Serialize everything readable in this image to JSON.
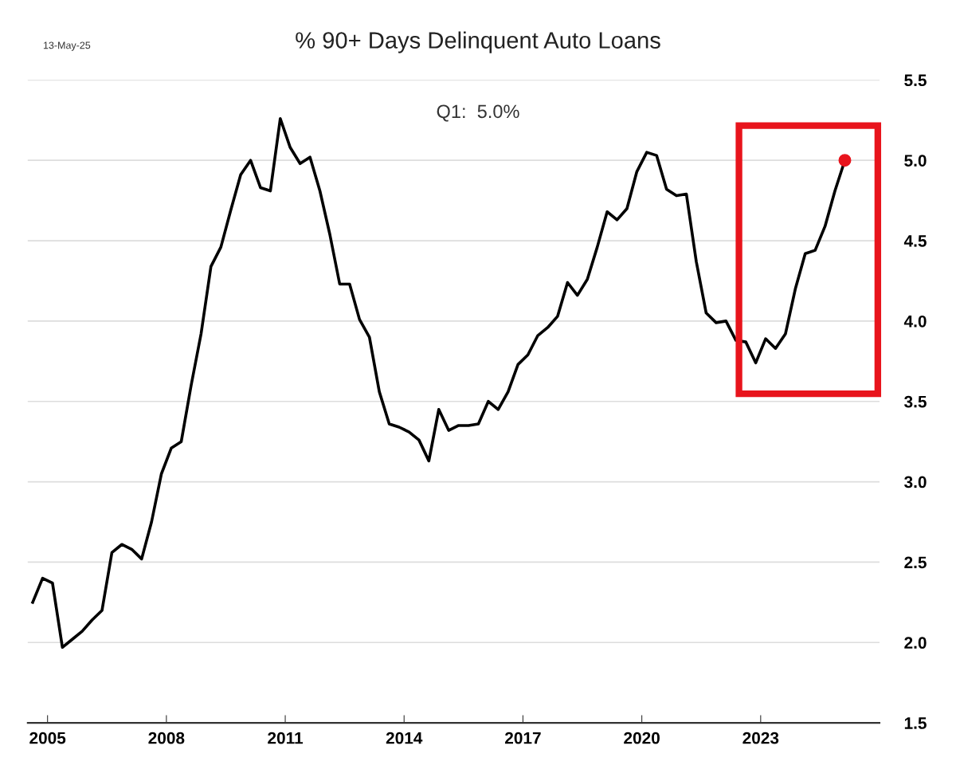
{
  "chart_data": {
    "type": "line",
    "title": "% 90+ Days Delinquent Auto Loans",
    "annotations": [
      "13-May-25",
      "Q1:  5.0%"
    ],
    "x": [
      2004.625,
      2004.875,
      2005.125,
      2005.375,
      2005.625,
      2005.875,
      2006.125,
      2006.375,
      2006.625,
      2006.875,
      2007.125,
      2007.375,
      2007.625,
      2007.875,
      2008.125,
      2008.375,
      2008.625,
      2008.875,
      2009.125,
      2009.375,
      2009.625,
      2009.875,
      2010.125,
      2010.375,
      2010.625,
      2010.875,
      2011.125,
      2011.375,
      2011.625,
      2011.875,
      2012.125,
      2012.375,
      2012.625,
      2012.875,
      2013.125,
      2013.375,
      2013.625,
      2013.875,
      2014.125,
      2014.375,
      2014.625,
      2014.875,
      2015.125,
      2015.375,
      2015.625,
      2015.875,
      2016.125,
      2016.375,
      2016.625,
      2016.875,
      2017.125,
      2017.375,
      2017.625,
      2017.875,
      2018.125,
      2018.375,
      2018.625,
      2018.875,
      2019.125,
      2019.375,
      2019.625,
      2019.875,
      2020.125,
      2020.375,
      2020.625,
      2020.875,
      2021.125,
      2021.375,
      2021.625,
      2021.875,
      2022.125,
      2022.375,
      2022.625,
      2022.875,
      2023.125,
      2023.375,
      2023.625,
      2023.875,
      2024.125,
      2024.375,
      2024.625,
      2024.875,
      2025.125
    ],
    "series": [
      {
        "color": "#000000",
        "marker": "none",
        "values": [
          2.25,
          2.4,
          2.37,
          1.97,
          2.02,
          2.07,
          2.14,
          2.2,
          2.56,
          2.61,
          2.58,
          2.52,
          2.75,
          3.05,
          3.21,
          3.25,
          3.6,
          3.92,
          4.34,
          4.46,
          4.69,
          4.91,
          5.0,
          4.83,
          4.81,
          5.26,
          5.08,
          4.98,
          5.02,
          4.81,
          4.54,
          4.23,
          4.23,
          4.01,
          3.9,
          3.56,
          3.36,
          3.34,
          3.31,
          3.26,
          3.13,
          3.45,
          3.32,
          3.35,
          3.35,
          3.36,
          3.5,
          3.45,
          3.56,
          3.73,
          3.79,
          3.91,
          3.96,
          4.03,
          4.24,
          4.16,
          4.26,
          4.46,
          4.68,
          4.63,
          4.7,
          4.93,
          5.05,
          5.03,
          4.82,
          4.78,
          4.79,
          4.37,
          4.05,
          3.99,
          4.0,
          3.88,
          3.87,
          3.74,
          3.89,
          3.83,
          3.92,
          4.2,
          4.42,
          4.44,
          4.59,
          4.81,
          5.0
        ]
      },
      {
        "type": "scatter",
        "color": "#e8141c",
        "marker": "circle",
        "x": [
          2025.125
        ],
        "values": [
          5.0
        ]
      }
    ],
    "xlim": [
      2004.5,
      2026
    ],
    "xticks": [
      2005,
      2008,
      2011,
      2014,
      2017,
      2020,
      2023
    ],
    "ylim": [
      1.5,
      5.5
    ],
    "yticks": [
      {
        "value": 1.5,
        "label": "1.5"
      },
      {
        "value": 2,
        "label": "2.0"
      },
      {
        "value": 2.5,
        "label": "2.5"
      },
      {
        "value": 3,
        "label": "3.0"
      },
      {
        "value": 3.5,
        "label": "3.5"
      },
      {
        "value": 4,
        "label": "4.0"
      },
      {
        "value": 4.5,
        "label": "4.5"
      },
      {
        "value": 5,
        "label": "5.0"
      },
      {
        "value": 5.5,
        "label": "5.5"
      }
    ],
    "grid": "y",
    "legend": false
  }
}
